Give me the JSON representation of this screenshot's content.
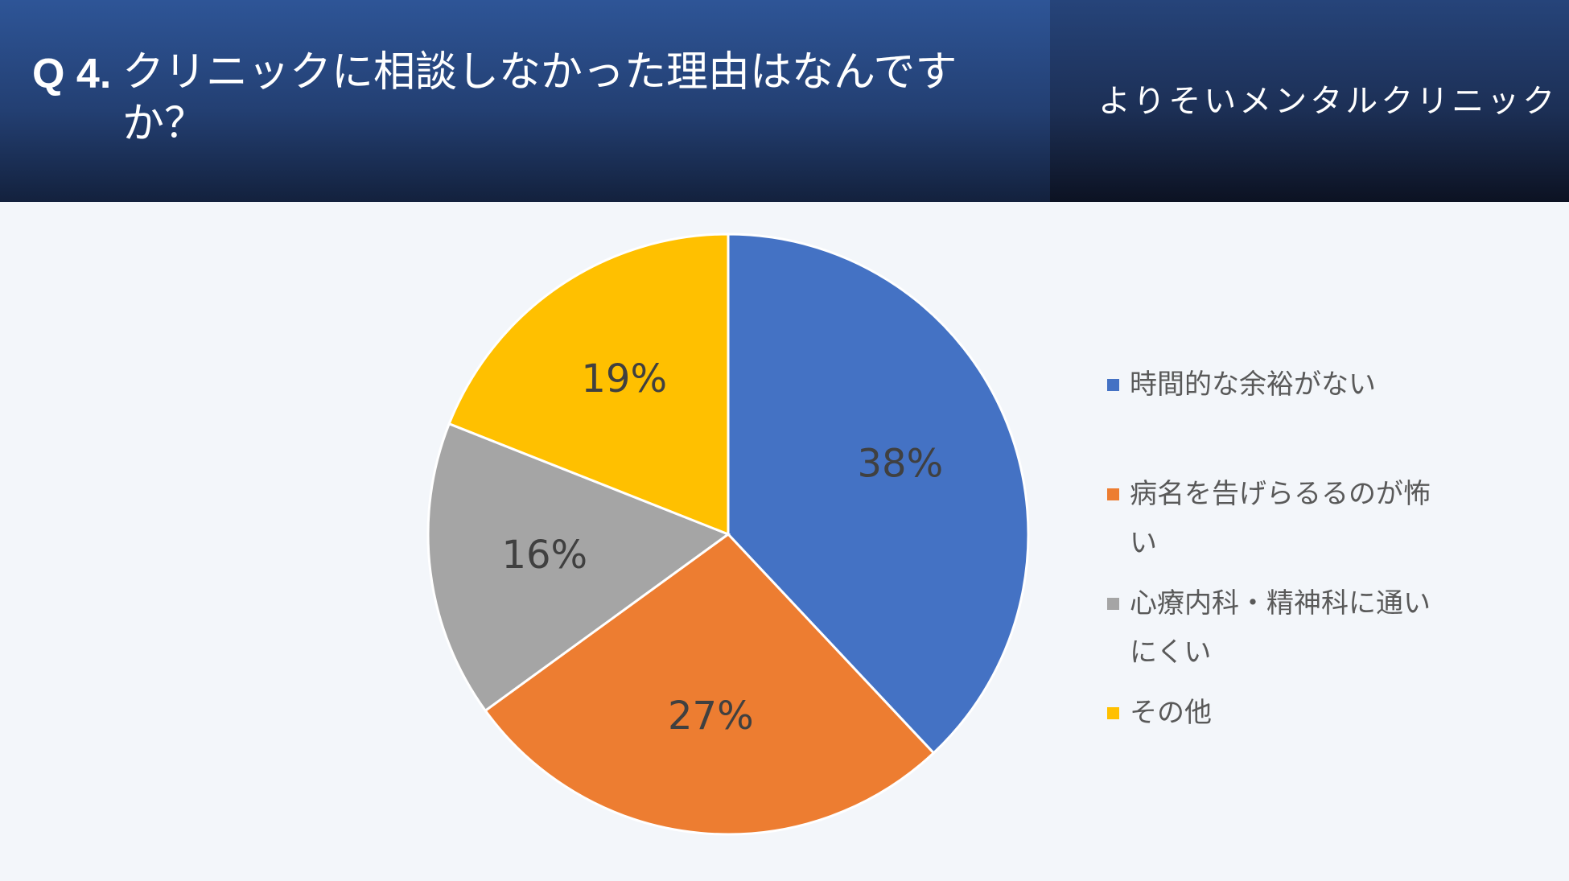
{
  "header": {
    "question_number": "Q 4.",
    "question_text": "クリニックに相談しなかった理由はなんですか？",
    "clinic_name": "よりそいメンタルクリニック"
  },
  "colors": {
    "header_blue": "#2e5597",
    "series": [
      "#4472c4",
      "#ed7d31",
      "#a5a5a5",
      "#ffc000"
    ]
  },
  "chart_data": {
    "type": "pie",
    "title": "",
    "categories": [
      "時間的な余裕がない",
      "病名を告げらるるのが怖い",
      "心療内科・精神科に通いにくい",
      "その他"
    ],
    "values": [
      38,
      27,
      16,
      19
    ],
    "labels": [
      "38%",
      "27%",
      "16%",
      "19%"
    ],
    "colors": [
      "#4472c4",
      "#ed7d31",
      "#a5a5a5",
      "#ffc000"
    ],
    "legend_position": "right"
  }
}
